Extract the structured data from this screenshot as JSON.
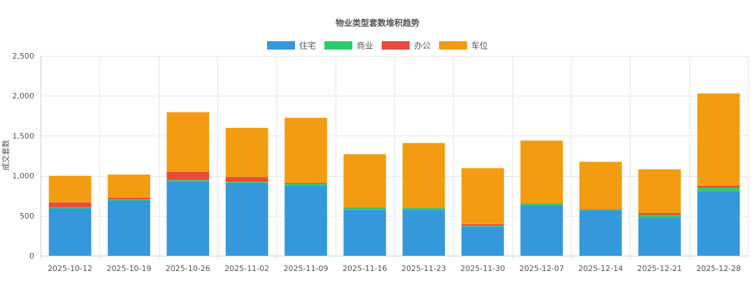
{
  "chart_data": {
    "type": "bar",
    "stacked": true,
    "title": "物业类型套数堆积趋势",
    "xlabel": "",
    "ylabel": "成交套数",
    "ylim": [
      0,
      2500
    ],
    "yticks": [
      0,
      500,
      1000,
      1500,
      2000,
      2500
    ],
    "ytick_labels": [
      "0",
      "500",
      "1,000",
      "1,500",
      "2,000",
      "2,500"
    ],
    "grid": true,
    "legend_position": "top-center",
    "categories": [
      "2025-10-12",
      "2025-10-19",
      "2025-10-26",
      "2025-11-02",
      "2025-11-09",
      "2025-11-16",
      "2025-11-23",
      "2025-11-30",
      "2025-12-07",
      "2025-12-14",
      "2025-12-21",
      "2025-12-28"
    ],
    "series": [
      {
        "name": "住宅",
        "color": "#3498db",
        "values": [
          590,
          690,
          930,
          910,
          880,
          575,
          575,
          365,
          630,
          570,
          480,
          800
        ]
      },
      {
        "name": "商业",
        "color": "#2ecc71",
        "values": [
          15,
          15,
          15,
          15,
          20,
          25,
          20,
          10,
          20,
          10,
          30,
          50
        ]
      },
      {
        "name": "办公",
        "color": "#e74c3c",
        "values": [
          60,
          20,
          105,
          60,
          10,
          5,
          5,
          20,
          5,
          5,
          25,
          25
        ]
      },
      {
        "name": "车位",
        "color": "#f39c12",
        "values": [
          335,
          290,
          745,
          615,
          815,
          665,
          810,
          700,
          785,
          590,
          545,
          1155
        ]
      }
    ]
  }
}
